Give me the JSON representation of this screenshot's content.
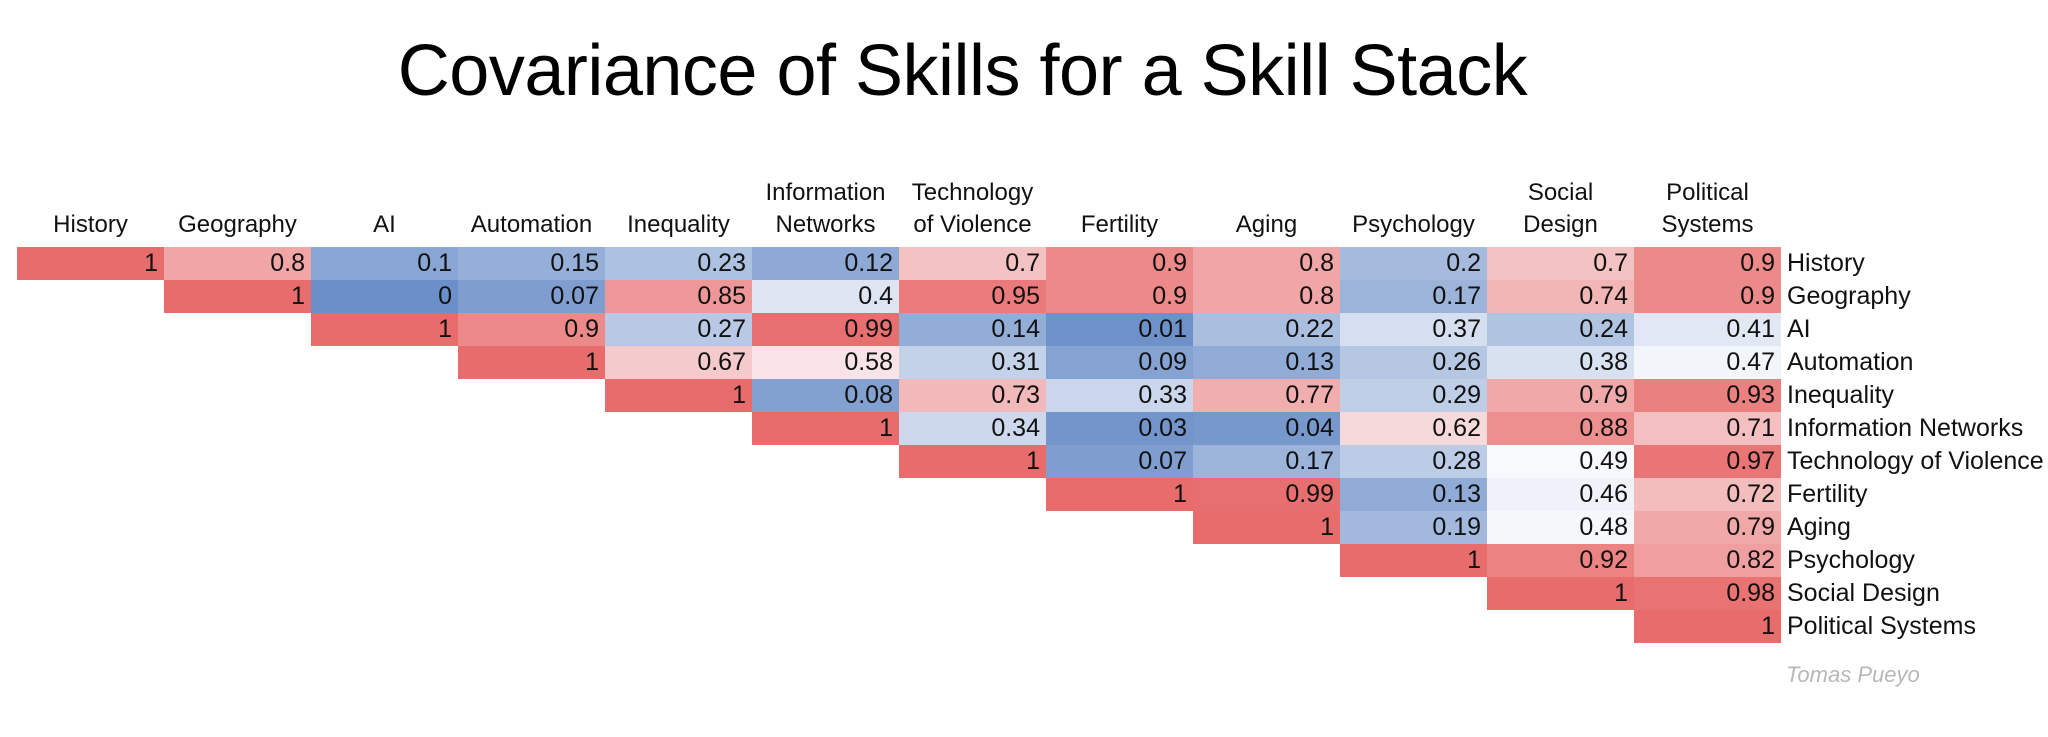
{
  "chart_data": {
    "type": "heatmap",
    "title": "Covariance of Skills for a Skill Stack",
    "columns": [
      [
        "History"
      ],
      [
        "Geography"
      ],
      [
        "AI"
      ],
      [
        "Automation"
      ],
      [
        "Inequality"
      ],
      [
        "Information",
        "Networks"
      ],
      [
        "Technology",
        "of Violence"
      ],
      [
        "Fertility"
      ],
      [
        "Aging"
      ],
      [
        "Psychology"
      ],
      [
        "Social",
        "Design"
      ],
      [
        "Political",
        "Systems"
      ]
    ],
    "rows": [
      "History",
      "Geography",
      "AI",
      "Automation",
      "Inequality",
      "Information Networks",
      "Technology of Violence",
      "Fertility",
      "Aging",
      "Psychology",
      "Social Design",
      "Political Systems"
    ],
    "values": [
      [
        "1",
        "0.8",
        "0.1",
        "0.15",
        "0.23",
        "0.12",
        "0.7",
        "0.9",
        "0.8",
        "0.2",
        "0.7",
        "0.9"
      ],
      [
        null,
        "1",
        "0",
        "0.07",
        "0.85",
        "0.4",
        "0.95",
        "0.9",
        "0.8",
        "0.17",
        "0.74",
        "0.9"
      ],
      [
        null,
        null,
        "1",
        "0.9",
        "0.27",
        "0.99",
        "0.14",
        "0.01",
        "0.22",
        "0.37",
        "0.24",
        "0.41"
      ],
      [
        null,
        null,
        null,
        "1",
        "0.67",
        "0.58",
        "0.31",
        "0.09",
        "0.13",
        "0.26",
        "0.38",
        "0.47"
      ],
      [
        null,
        null,
        null,
        null,
        "1",
        "0.08",
        "0.73",
        "0.33",
        "0.77",
        "0.29",
        "0.79",
        "0.93"
      ],
      [
        null,
        null,
        null,
        null,
        null,
        "1",
        "0.34",
        "0.03",
        "0.04",
        "0.62",
        "0.88",
        "0.71"
      ],
      [
        null,
        null,
        null,
        null,
        null,
        null,
        "1",
        "0.07",
        "0.17",
        "0.28",
        "0.49",
        "0.97"
      ],
      [
        null,
        null,
        null,
        null,
        null,
        null,
        null,
        "1",
        "0.99",
        "0.13",
        "0.46",
        "0.72"
      ],
      [
        null,
        null,
        null,
        null,
        null,
        null,
        null,
        null,
        "1",
        "0.19",
        "0.48",
        "0.79"
      ],
      [
        null,
        null,
        null,
        null,
        null,
        null,
        null,
        null,
        null,
        "1",
        "0.92",
        "0.82"
      ],
      [
        null,
        null,
        null,
        null,
        null,
        null,
        null,
        null,
        null,
        null,
        "1",
        "0.98"
      ],
      [
        null,
        null,
        null,
        null,
        null,
        null,
        null,
        null,
        null,
        null,
        null,
        "1"
      ]
    ],
    "color_scale": {
      "low": "#6b8fc8",
      "mid": "#fbfbfd",
      "high": "#e86c6c",
      "domain": [
        0,
        1
      ]
    },
    "legend": "none",
    "grid": false
  },
  "credit": "Tomas Pueyo"
}
